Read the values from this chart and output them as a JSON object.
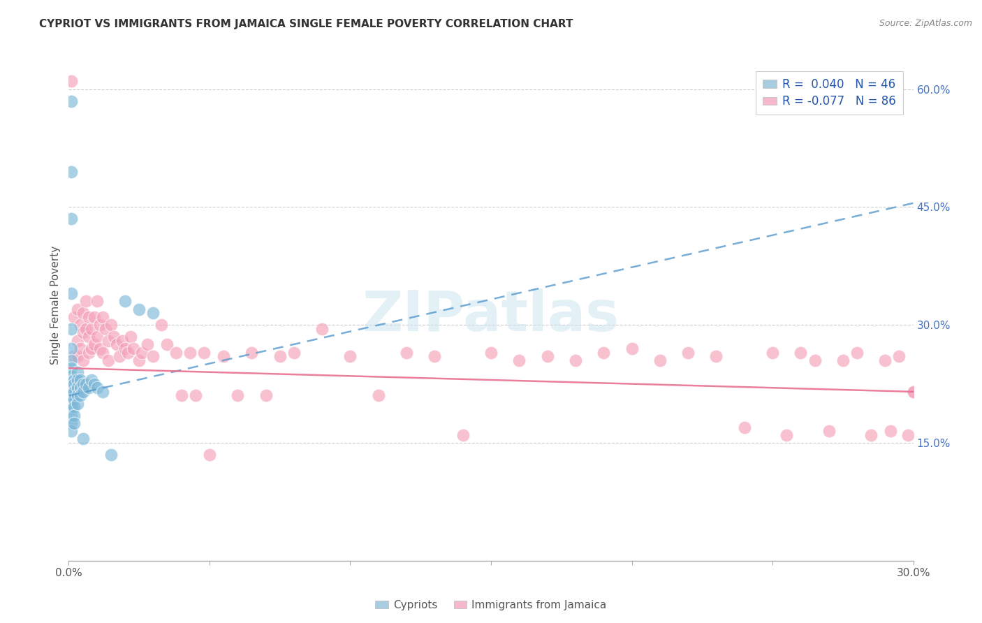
{
  "title": "CYPRIOT VS IMMIGRANTS FROM JAMAICA SINGLE FEMALE POVERTY CORRELATION CHART",
  "source": "Source: ZipAtlas.com",
  "ylabel": "Single Female Poverty",
  "right_yticks": [
    "60.0%",
    "45.0%",
    "30.0%",
    "15.0%"
  ],
  "right_ytick_vals": [
    0.6,
    0.45,
    0.3,
    0.15
  ],
  "xlim": [
    0.0,
    0.3
  ],
  "ylim": [
    0.0,
    0.65
  ],
  "legend_r1": "R =  0.040",
  "legend_n1": "N = 46",
  "legend_r2": "R = -0.077",
  "legend_n2": "N = 86",
  "color_cypriot": "#7db8d8",
  "color_jamaica": "#f4a0b8",
  "background_color": "#ffffff",
  "watermark": "ZIPatlas",
  "cypriot_x": [
    0.001,
    0.001,
    0.001,
    0.001,
    0.001,
    0.001,
    0.001,
    0.001,
    0.001,
    0.001,
    0.001,
    0.001,
    0.001,
    0.001,
    0.001,
    0.001,
    0.001,
    0.001,
    0.002,
    0.002,
    0.002,
    0.002,
    0.002,
    0.002,
    0.002,
    0.003,
    0.003,
    0.003,
    0.003,
    0.003,
    0.004,
    0.004,
    0.004,
    0.005,
    0.005,
    0.005,
    0.006,
    0.007,
    0.008,
    0.009,
    0.01,
    0.012,
    0.015,
    0.02,
    0.025,
    0.03
  ],
  "cypriot_y": [
    0.585,
    0.495,
    0.435,
    0.34,
    0.295,
    0.27,
    0.255,
    0.245,
    0.235,
    0.22,
    0.215,
    0.21,
    0.205,
    0.2,
    0.195,
    0.185,
    0.175,
    0.165,
    0.23,
    0.225,
    0.215,
    0.205,
    0.195,
    0.185,
    0.175,
    0.24,
    0.23,
    0.22,
    0.21,
    0.2,
    0.23,
    0.22,
    0.21,
    0.225,
    0.215,
    0.155,
    0.225,
    0.22,
    0.23,
    0.225,
    0.22,
    0.215,
    0.135,
    0.33,
    0.32,
    0.315
  ],
  "jamaica_x": [
    0.001,
    0.002,
    0.002,
    0.003,
    0.003,
    0.003,
    0.004,
    0.004,
    0.005,
    0.005,
    0.005,
    0.006,
    0.006,
    0.007,
    0.007,
    0.007,
    0.008,
    0.008,
    0.009,
    0.009,
    0.01,
    0.01,
    0.011,
    0.011,
    0.012,
    0.012,
    0.013,
    0.014,
    0.014,
    0.015,
    0.016,
    0.017,
    0.018,
    0.019,
    0.02,
    0.021,
    0.022,
    0.023,
    0.025,
    0.026,
    0.028,
    0.03,
    0.033,
    0.035,
    0.038,
    0.04,
    0.043,
    0.045,
    0.048,
    0.05,
    0.055,
    0.06,
    0.065,
    0.07,
    0.075,
    0.08,
    0.09,
    0.1,
    0.11,
    0.12,
    0.13,
    0.14,
    0.15,
    0.16,
    0.17,
    0.18,
    0.19,
    0.2,
    0.21,
    0.22,
    0.23,
    0.24,
    0.25,
    0.255,
    0.26,
    0.265,
    0.27,
    0.275,
    0.28,
    0.285,
    0.29,
    0.292,
    0.295,
    0.298,
    0.3,
    0.3
  ],
  "jamaica_y": [
    0.61,
    0.31,
    0.26,
    0.32,
    0.28,
    0.26,
    0.3,
    0.27,
    0.315,
    0.29,
    0.255,
    0.33,
    0.295,
    0.31,
    0.285,
    0.265,
    0.295,
    0.27,
    0.31,
    0.275,
    0.33,
    0.285,
    0.3,
    0.27,
    0.31,
    0.265,
    0.295,
    0.28,
    0.255,
    0.3,
    0.285,
    0.275,
    0.26,
    0.28,
    0.27,
    0.265,
    0.285,
    0.27,
    0.255,
    0.265,
    0.275,
    0.26,
    0.3,
    0.275,
    0.265,
    0.21,
    0.265,
    0.21,
    0.265,
    0.135,
    0.26,
    0.21,
    0.265,
    0.21,
    0.26,
    0.265,
    0.295,
    0.26,
    0.21,
    0.265,
    0.26,
    0.16,
    0.265,
    0.255,
    0.26,
    0.255,
    0.265,
    0.27,
    0.255,
    0.265,
    0.26,
    0.17,
    0.265,
    0.16,
    0.265,
    0.255,
    0.165,
    0.255,
    0.265,
    0.16,
    0.255,
    0.165,
    0.26,
    0.16,
    0.215,
    0.215
  ]
}
